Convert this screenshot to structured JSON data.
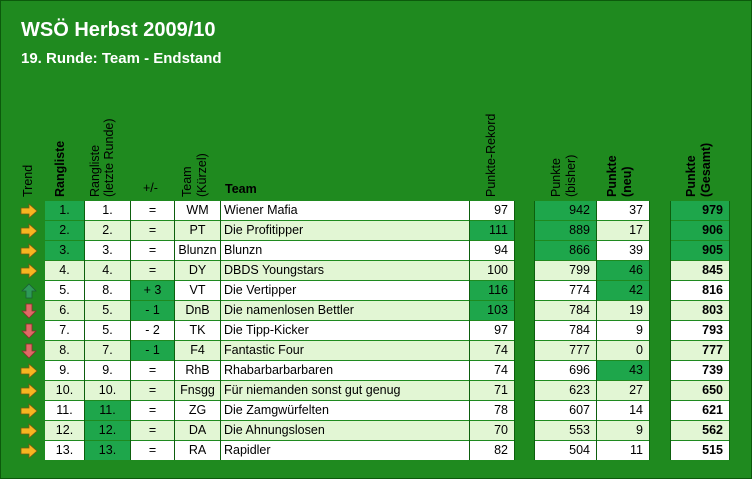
{
  "title": "WSÖ Herbst 2009/10",
  "subtitle": "19. Runde: Team - Endstand",
  "headers": {
    "trend": "Trend",
    "rangliste": "Rangliste",
    "rangliste_letzte_1": "Rangliste",
    "rangliste_letzte_2": "(letzte Runde)",
    "plusminus": "+/-",
    "team_kuerzel_1": "Team",
    "team_kuerzel_2": "(Kürzel)",
    "team": "Team",
    "punkte_rekord": "Punkte-Rekord",
    "punkte_bisher_1": "Punkte",
    "punkte_bisher_2": "(bisher)",
    "punkte_neu_1": "Punkte",
    "punkte_neu_2": "(neu)",
    "punkte_gesamt_1": "Punkte",
    "punkte_gesamt_2": "(Gesamt)"
  },
  "colors": {
    "background": "#1f8a1f",
    "light_row": "#e2f6d4",
    "white_row": "#ffffff",
    "highlight": "#1ea64b",
    "arrow_neutral": "#f7b520",
    "arrow_up": "#2e9a58",
    "arrow_down": "#e06a66"
  },
  "rows": [
    {
      "trend": "neutral",
      "rank": "1.",
      "last": "1.",
      "change": "=",
      "abbr": "WM",
      "team": "Wiener Mafia",
      "record": "97",
      "before": "942",
      "new": "37",
      "total": "979",
      "hl": {
        "rank": true,
        "record": false,
        "before": true,
        "new": false,
        "total": true,
        "change": false,
        "last": false
      }
    },
    {
      "trend": "neutral",
      "rank": "2.",
      "last": "2.",
      "change": "=",
      "abbr": "PT",
      "team": "Die Profitipper",
      "record": "111",
      "before": "889",
      "new": "17",
      "total": "906",
      "hl": {
        "rank": true,
        "record": true,
        "before": true,
        "new": false,
        "total": true,
        "change": false,
        "last": false
      }
    },
    {
      "trend": "neutral",
      "rank": "3.",
      "last": "3.",
      "change": "=",
      "abbr": "Blunzn",
      "team": "Blunzn",
      "record": "94",
      "before": "866",
      "new": "39",
      "total": "905",
      "hl": {
        "rank": true,
        "record": false,
        "before": true,
        "new": false,
        "total": true,
        "change": false,
        "last": false
      }
    },
    {
      "trend": "neutral",
      "rank": "4.",
      "last": "4.",
      "change": "=",
      "abbr": "DY",
      "team": "DBDS Youngstars",
      "record": "100",
      "before": "799",
      "new": "46",
      "total": "845",
      "hl": {
        "rank": false,
        "record": false,
        "before": false,
        "new": true,
        "total": false,
        "change": false,
        "last": false
      }
    },
    {
      "trend": "up",
      "rank": "5.",
      "last": "8.",
      "change": "+ 3",
      "abbr": "VT",
      "team": "Die Vertipper",
      "record": "116",
      "before": "774",
      "new": "42",
      "total": "816",
      "hl": {
        "rank": false,
        "record": true,
        "before": false,
        "new": true,
        "total": false,
        "change": true,
        "last": false
      }
    },
    {
      "trend": "down",
      "rank": "6.",
      "last": "5.",
      "change": "- 1",
      "abbr": "DnB",
      "team": "Die namenlosen Bettler",
      "record": "103",
      "before": "784",
      "new": "19",
      "total": "803",
      "hl": {
        "rank": false,
        "record": true,
        "before": false,
        "new": false,
        "total": false,
        "change": true,
        "last": false
      }
    },
    {
      "trend": "down",
      "rank": "7.",
      "last": "5.",
      "change": "- 2",
      "abbr": "TK",
      "team": "Die Tipp-Kicker",
      "record": "97",
      "before": "784",
      "new": "9",
      "total": "793",
      "hl": {
        "rank": false,
        "record": false,
        "before": false,
        "new": false,
        "total": false,
        "change": false,
        "last": false
      }
    },
    {
      "trend": "down",
      "rank": "8.",
      "last": "7.",
      "change": "- 1",
      "abbr": "F4",
      "team": "Fantastic Four",
      "record": "74",
      "before": "777",
      "new": "0",
      "total": "777",
      "hl": {
        "rank": false,
        "record": false,
        "before": false,
        "new": false,
        "total": false,
        "change": true,
        "last": false
      }
    },
    {
      "trend": "neutral",
      "rank": "9.",
      "last": "9.",
      "change": "=",
      "abbr": "RhB",
      "team": "Rhabarbarbarbaren",
      "record": "74",
      "before": "696",
      "new": "43",
      "total": "739",
      "hl": {
        "rank": false,
        "record": false,
        "before": false,
        "new": true,
        "total": false,
        "change": false,
        "last": false
      }
    },
    {
      "trend": "neutral",
      "rank": "10.",
      "last": "10.",
      "change": "=",
      "abbr": "Fnsgg",
      "team": "Für niemanden sonst gut genug",
      "record": "71",
      "before": "623",
      "new": "27",
      "total": "650",
      "hl": {
        "rank": false,
        "record": false,
        "before": false,
        "new": false,
        "total": false,
        "change": false,
        "last": false
      }
    },
    {
      "trend": "neutral",
      "rank": "11.",
      "last": "11.",
      "change": "=",
      "abbr": "ZG",
      "team": "Die Zamgwürfelten",
      "record": "78",
      "before": "607",
      "new": "14",
      "total": "621",
      "hl": {
        "rank": false,
        "record": false,
        "before": false,
        "new": false,
        "total": false,
        "change": false,
        "last": true
      }
    },
    {
      "trend": "neutral",
      "rank": "12.",
      "last": "12.",
      "change": "=",
      "abbr": "DA",
      "team": "Die Ahnungslosen",
      "record": "70",
      "before": "553",
      "new": "9",
      "total": "562",
      "hl": {
        "rank": false,
        "record": false,
        "before": false,
        "new": false,
        "total": false,
        "change": false,
        "last": true
      }
    },
    {
      "trend": "neutral",
      "rank": "13.",
      "last": "13.",
      "change": "=",
      "abbr": "RA",
      "team": "Rapidler",
      "record": "82",
      "before": "504",
      "new": "11",
      "total": "515",
      "hl": {
        "rank": false,
        "record": false,
        "before": false,
        "new": false,
        "total": false,
        "change": false,
        "last": true
      }
    }
  ]
}
